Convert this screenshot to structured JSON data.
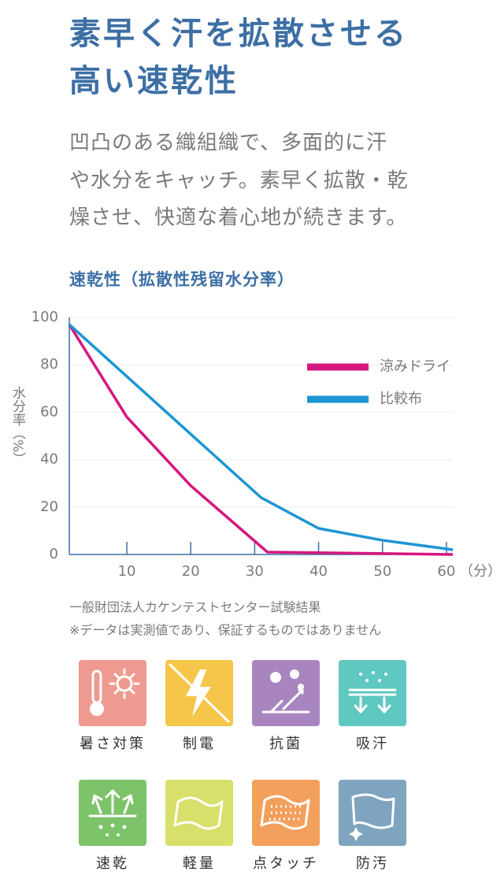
{
  "header": {
    "title": [
      "素早く汗を拡散させる",
      "高い速乾性"
    ],
    "description": [
      "凹凸のある織組織で、多面的に汗",
      "や水分をキャッチ。素早く拡散・乾",
      "燥させ、快適な着心地が続きます。"
    ]
  },
  "chart_data": {
    "type": "line",
    "title": "速乾性（拡散性残留水分率）",
    "y_label": "水分率（%）",
    "x_label": "（分）",
    "xlim": [
      1,
      61
    ],
    "xticks": [
      10,
      20,
      30,
      40,
      50,
      60
    ],
    "ylim": [
      0,
      100
    ],
    "yticks": [
      0,
      20,
      40,
      60,
      80,
      100
    ],
    "grid": true,
    "legend": "upper right",
    "series": [
      {
        "name": "涼みドライ",
        "color": "#d6177e",
        "x": [
          1,
          10,
          20,
          32,
          61
        ],
        "values": [
          97,
          58,
          29,
          1,
          0
        ]
      },
      {
        "name": "比較布",
        "color": "#1e95d3",
        "x": [
          1,
          31,
          40,
          50,
          61
        ],
        "values": [
          97,
          24,
          11,
          6,
          2
        ]
      }
    ]
  },
  "notes": [
    "一般財団法人カケンテストセンター試験結果",
    "※データは実測値であり、保証するものではありません"
  ],
  "features": [
    "暑さ対策",
    "制電",
    "抗菌",
    "吸汗",
    "速乾",
    "軽量",
    "点タッチ",
    "防汚"
  ]
}
